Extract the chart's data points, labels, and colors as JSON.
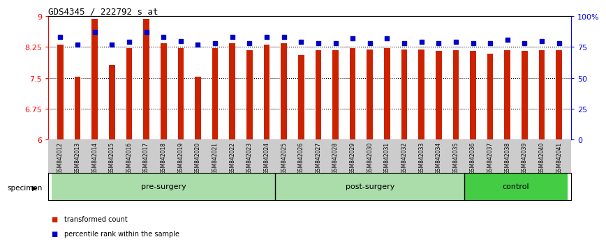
{
  "title": "GDS4345 / 222792_s_at",
  "samples": [
    "GSM842012",
    "GSM842013",
    "GSM842014",
    "GSM842015",
    "GSM842016",
    "GSM842017",
    "GSM842018",
    "GSM842019",
    "GSM842020",
    "GSM842021",
    "GSM842022",
    "GSM842023",
    "GSM842024",
    "GSM842025",
    "GSM842026",
    "GSM842027",
    "GSM842028",
    "GSM842029",
    "GSM842030",
    "GSM842031",
    "GSM842032",
    "GSM842033",
    "GSM842034",
    "GSM842035",
    "GSM842036",
    "GSM842037",
    "GSM842038",
    "GSM842039",
    "GSM842040",
    "GSM842041"
  ],
  "transformed_count": [
    8.3,
    7.52,
    8.93,
    7.82,
    8.22,
    8.93,
    8.35,
    8.22,
    7.52,
    8.22,
    8.35,
    8.17,
    8.3,
    8.35,
    8.05,
    8.18,
    8.17,
    8.22,
    8.19,
    8.22,
    8.19,
    8.19,
    8.16,
    8.18,
    8.16,
    8.08,
    8.18,
    8.16,
    8.18,
    8.17
  ],
  "percentile_rank": [
    83,
    77,
    87,
    77,
    79,
    87,
    83,
    80,
    77,
    78,
    83,
    78,
    83,
    83,
    79,
    78,
    78,
    82,
    78,
    82,
    78,
    79,
    78,
    79,
    78,
    78,
    81,
    78,
    80,
    78
  ],
  "groups_info": [
    {
      "name": "pre-surgery",
      "start": 0,
      "end": 13,
      "color": "#AADDAA"
    },
    {
      "name": "post-surgery",
      "start": 13,
      "end": 24,
      "color": "#AADDAA"
    },
    {
      "name": "control",
      "start": 24,
      "end": 30,
      "color": "#44CC44"
    }
  ],
  "bar_color": "#CC2200",
  "dot_color": "#0000CC",
  "ylim_left": [
    6,
    9
  ],
  "ylim_right": [
    0,
    100
  ],
  "yticks_left": [
    6,
    6.75,
    7.5,
    8.25,
    9
  ],
  "ytick_labels_left": [
    "6",
    "6.75",
    "7.5",
    "8.25",
    "9"
  ],
  "yticks_right": [
    0,
    25,
    50,
    75,
    100
  ],
  "ytick_labels_right": [
    "0",
    "25",
    "50",
    "75",
    "100%"
  ],
  "gridlines": [
    6.75,
    7.5,
    8.25
  ],
  "legend_items": [
    {
      "color": "#CC2200",
      "label": "transformed count"
    },
    {
      "color": "#0000CC",
      "label": "percentile rank within the sample"
    }
  ]
}
